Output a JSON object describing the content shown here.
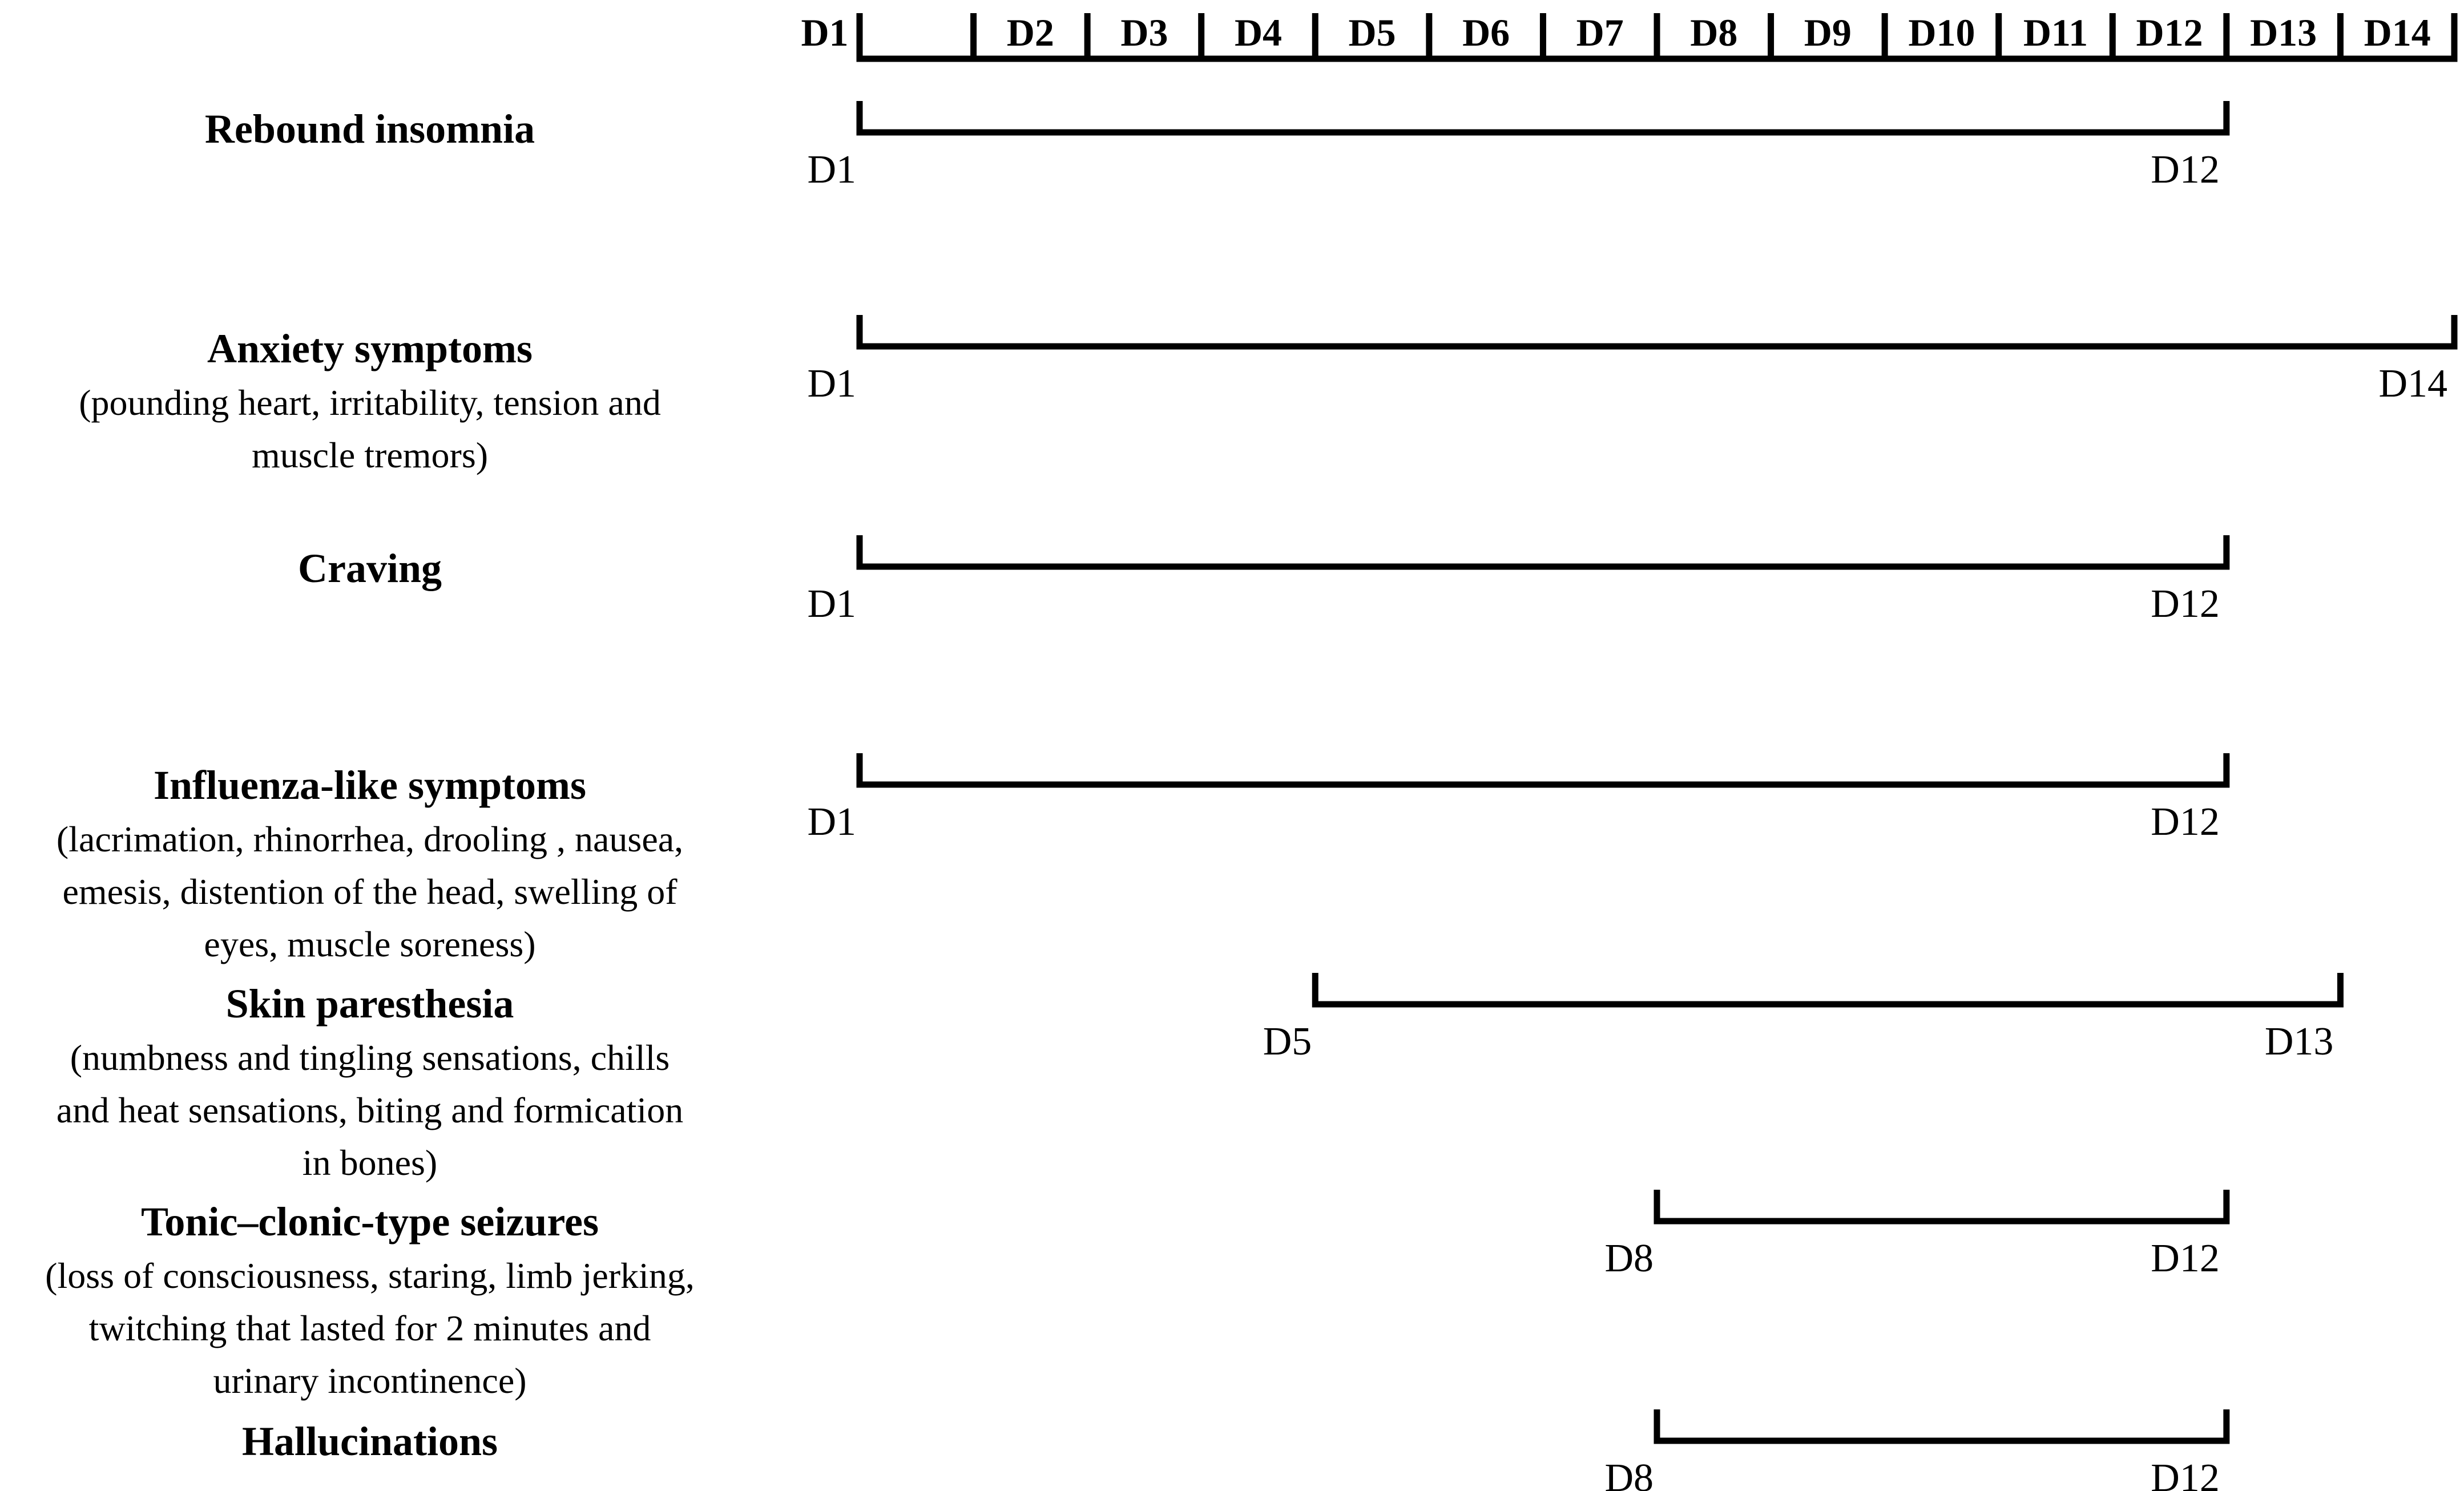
{
  "timeline": {
    "days": [
      "D1",
      "D2",
      "D3",
      "D4",
      "D5",
      "D6",
      "D7",
      "D8",
      "D9",
      "D10",
      "D11",
      "D12",
      "D13",
      "D14"
    ]
  },
  "rows": [
    {
      "title": "Rebound insomnia",
      "description": [],
      "start": "D1",
      "end": "D12"
    },
    {
      "title": "Anxiety symptoms",
      "description": [
        "(pounding heart, irritability, tension and",
        "muscle tremors)"
      ],
      "start": "D1",
      "end": "D14"
    },
    {
      "title": "Craving",
      "description": [],
      "start": "D1",
      "end": "D12"
    },
    {
      "title": "Influenza-like symptoms",
      "description": [
        "(lacrimation, rhinorrhea, drooling , nausea,",
        "emesis, distention of the head, swelling of",
        "eyes, muscle soreness)"
      ],
      "start": "D1",
      "end": "D12"
    },
    {
      "title": "Skin paresthesia",
      "description": [
        "(numbness and tingling sensations, chills",
        "and heat sensations, biting and formication",
        "in bones)"
      ],
      "start": "D5",
      "end": "D13"
    },
    {
      "title": "Tonic–clonic-type seizures",
      "description": [
        "(loss of consciousness, staring, limb jerking,",
        "twitching that lasted for 2 minutes and",
        "urinary incontinence)"
      ],
      "start": "D8",
      "end": "D12"
    },
    {
      "title": "Hallucinations",
      "description": [],
      "start": "D8",
      "end": "D12"
    }
  ]
}
